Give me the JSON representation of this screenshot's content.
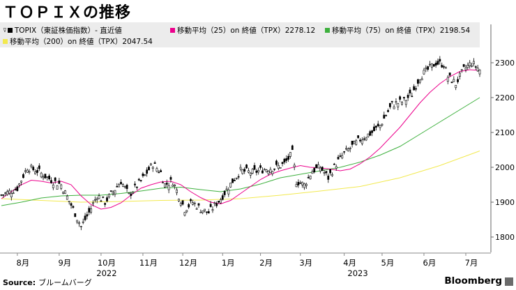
{
  "title": "ＴＯＰＩＸの推移",
  "legend": {
    "topix": "TOPIX（東証株価指数）- 直近値",
    "ma25": "移動平均（25）on 終値（TPX）2278.12",
    "ma75": "移動平均（75）on 終値（TPX）2198.54",
    "ma200": "移動平均（200）on 終値（TPX）2047.54"
  },
  "source_label": "Source:",
  "source_text": "ブルームバーグ",
  "brand": "Bloomberg",
  "chart_data": {
    "type": "line",
    "title": "ＴＯＰＩＸの推移",
    "ylim": [
      1760,
      2340
    ],
    "yticks": [
      "2300",
      "2200",
      "2100",
      "2000",
      "1900",
      "1800"
    ],
    "ytick_values": [
      2300,
      2200,
      2100,
      2000,
      1900,
      1800
    ],
    "xlim": [
      0,
      240
    ],
    "month_labels": [
      {
        "label": "8月",
        "x": 8
      },
      {
        "label": "9月",
        "x": 29
      },
      {
        "label": "10月",
        "x": 50
      },
      {
        "label": "11月",
        "x": 71
      },
      {
        "label": "12月",
        "x": 91
      },
      {
        "label": "1月",
        "x": 111
      },
      {
        "label": "2月",
        "x": 130
      },
      {
        "label": "3月",
        "x": 150
      },
      {
        "label": "4月",
        "x": 172
      },
      {
        "label": "5月",
        "x": 191
      },
      {
        "label": "6月",
        "x": 212
      },
      {
        "label": "7月",
        "x": 233
      }
    ],
    "year_labels": [
      {
        "label": "2022",
        "x": 50
      },
      {
        "label": "2023",
        "x": 176
      }
    ],
    "candle_close_anchors": {
      "x": [
        0,
        8,
        13,
        18,
        26,
        30,
        36,
        40,
        44,
        48,
        52,
        56,
        60,
        64,
        70,
        76,
        80,
        82,
        86,
        92,
        96,
        100,
        104,
        110,
        116,
        120,
        126,
        132,
        138,
        142,
        146,
        148,
        152,
        156,
        160,
        164,
        168,
        172,
        176,
        180,
        186,
        190,
        196,
        202,
        206,
        210,
        214,
        218,
        222,
        224,
        228,
        232,
        236,
        238,
        240
      ],
      "y": [
        1920,
        1940,
        2000,
        1990,
        1960,
        1950,
        1880,
        1830,
        1870,
        1920,
        1900,
        1930,
        1960,
        1920,
        1960,
        2010,
        1985,
        1950,
        1960,
        1880,
        1900,
        1880,
        1870,
        1910,
        1960,
        1990,
        1985,
        1995,
        2000,
        2010,
        2040,
        1960,
        1950,
        1990,
        2000,
        1970,
        2010,
        2040,
        2060,
        2080,
        2100,
        2120,
        2180,
        2190,
        2210,
        2260,
        2280,
        2300,
        2295,
        2260,
        2240,
        2280,
        2300,
        2290,
        2280
      ]
    },
    "series": [
      {
        "name": "移動平均（25）on 終値（TPX）",
        "color": "#ec008c",
        "x": [
          0,
          5,
          10,
          15,
          20,
          25,
          30,
          35,
          40,
          45,
          50,
          55,
          60,
          65,
          70,
          75,
          80,
          85,
          90,
          95,
          100,
          105,
          110,
          115,
          120,
          125,
          130,
          135,
          140,
          145,
          150,
          155,
          160,
          165,
          170,
          175,
          180,
          185,
          190,
          195,
          200,
          205,
          210,
          215,
          220,
          225,
          230,
          235,
          240
        ],
        "y": [
          1910,
          1930,
          1950,
          1963,
          1960,
          1955,
          1960,
          1950,
          1918,
          1893,
          1880,
          1885,
          1898,
          1920,
          1940,
          1950,
          1958,
          1960,
          1950,
          1930,
          1913,
          1900,
          1895,
          1905,
          1925,
          1945,
          1965,
          1980,
          1990,
          1998,
          2005,
          2000,
          1998,
          1995,
          1990,
          1995,
          2010,
          2030,
          2055,
          2085,
          2115,
          2150,
          2185,
          2215,
          2240,
          2260,
          2275,
          2280,
          2278
        ]
      },
      {
        "name": "移動平均（75）on 終値（TPX）",
        "color": "#3db03d",
        "x": [
          0,
          10,
          20,
          30,
          40,
          50,
          60,
          70,
          80,
          90,
          100,
          110,
          120,
          130,
          140,
          150,
          160,
          170,
          180,
          190,
          200,
          210,
          220,
          230,
          240
        ],
        "y": [
          1890,
          1900,
          1912,
          1918,
          1920,
          1920,
          1925,
          1932,
          1940,
          1943,
          1936,
          1930,
          1938,
          1952,
          1970,
          1980,
          1990,
          2000,
          2015,
          2035,
          2060,
          2095,
          2130,
          2165,
          2200
        ]
      },
      {
        "name": "移動平均（200）on 終値（TPX）",
        "color": "#f2e94e",
        "x": [
          0,
          20,
          40,
          60,
          80,
          100,
          120,
          140,
          160,
          180,
          200,
          220,
          240
        ],
        "y": [
          1910,
          1905,
          1900,
          1902,
          1905,
          1906,
          1910,
          1920,
          1932,
          1945,
          1970,
          2005,
          2047
        ]
      }
    ]
  }
}
